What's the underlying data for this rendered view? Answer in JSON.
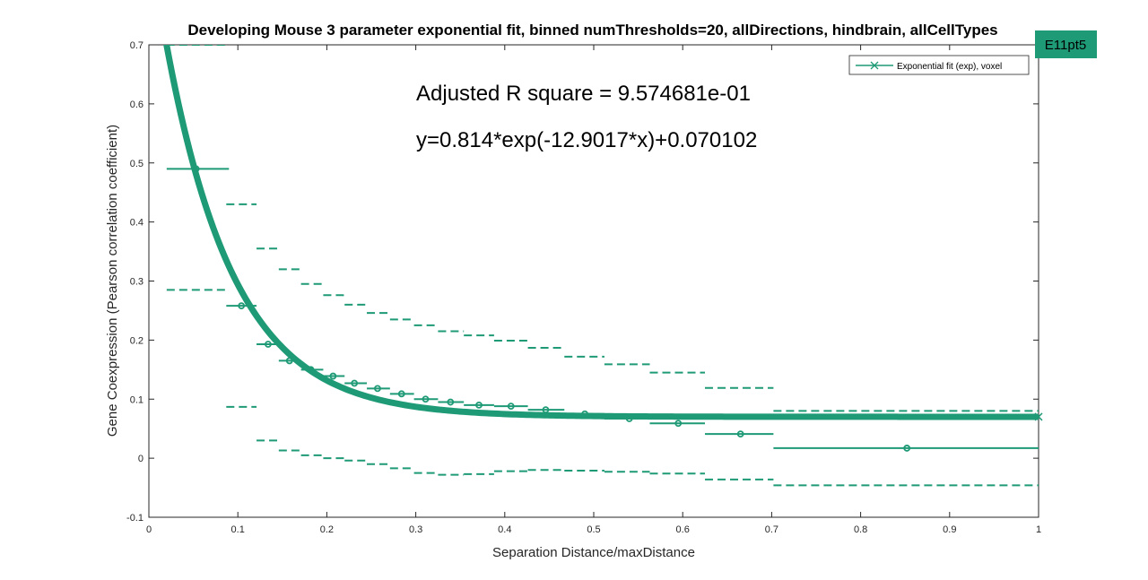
{
  "chart_data": {
    "type": "scatter",
    "title": "Developing Mouse 3 parameter exponential fit, binned numThresholds=20, allDirections, hindbrain, allCellTypes",
    "xlabel": "Separation Distance/maxDistance",
    "ylabel": "Gene Coexpression (Pearson correlation coefficient)",
    "xlim": [
      0,
      1
    ],
    "ylim": [
      -0.1,
      0.7
    ],
    "xticks": [
      "0",
      "0.1",
      "0.2",
      "0.3",
      "0.4",
      "0.5",
      "0.6",
      "0.7",
      "0.8",
      "0.9",
      "1"
    ],
    "yticks": [
      "-0.1",
      "0",
      "0.1",
      "0.2",
      "0.3",
      "0.4",
      "0.5",
      "0.6",
      "0.7"
    ],
    "grid": false,
    "legend_position": "top-right",
    "badge": "E11pt5",
    "annotations": {
      "r_square": "Adjusted R square = 9.574681e-01",
      "equation": "y=0.814*exp(-12.9017*x)+0.070102"
    },
    "fit": {
      "a": 0.814,
      "b": -12.9017,
      "c": 0.070102,
      "x_start": 0.02,
      "x_end": 1.0
    },
    "series": [
      {
        "name": "Exponential fit (exp), voxel",
        "color": "#1f9a76",
        "bins": [
          {
            "x": 0.053,
            "y": 0.49,
            "xmin": 0.02,
            "xmax": 0.09,
            "upper": 0.7,
            "lower": 0.285
          },
          {
            "x": 0.104,
            "y": 0.258,
            "xmin": 0.087,
            "xmax": 0.121,
            "upper": 0.43,
            "lower": 0.087
          },
          {
            "x": 0.134,
            "y": 0.193,
            "xmin": 0.121,
            "xmax": 0.146,
            "upper": 0.355,
            "lower": 0.03
          },
          {
            "x": 0.158,
            "y": 0.165,
            "xmin": 0.146,
            "xmax": 0.171,
            "upper": 0.32,
            "lower": 0.013
          },
          {
            "x": 0.182,
            "y": 0.15,
            "xmin": 0.171,
            "xmax": 0.196,
            "upper": 0.295,
            "lower": 0.005
          },
          {
            "x": 0.207,
            "y": 0.139,
            "xmin": 0.196,
            "xmax": 0.22,
            "upper": 0.276,
            "lower": 0.0
          },
          {
            "x": 0.231,
            "y": 0.127,
            "xmin": 0.22,
            "xmax": 0.245,
            "upper": 0.26,
            "lower": -0.004
          },
          {
            "x": 0.257,
            "y": 0.118,
            "xmin": 0.245,
            "xmax": 0.271,
            "upper": 0.246,
            "lower": -0.01
          },
          {
            "x": 0.284,
            "y": 0.109,
            "xmin": 0.271,
            "xmax": 0.298,
            "upper": 0.235,
            "lower": -0.017
          },
          {
            "x": 0.311,
            "y": 0.1,
            "xmin": 0.298,
            "xmax": 0.325,
            "upper": 0.225,
            "lower": -0.025
          },
          {
            "x": 0.339,
            "y": 0.095,
            "xmin": 0.325,
            "xmax": 0.354,
            "upper": 0.215,
            "lower": -0.028
          },
          {
            "x": 0.371,
            "y": 0.09,
            "xmin": 0.354,
            "xmax": 0.388,
            "upper": 0.208,
            "lower": -0.027
          },
          {
            "x": 0.407,
            "y": 0.088,
            "xmin": 0.388,
            "xmax": 0.426,
            "upper": 0.199,
            "lower": -0.022
          },
          {
            "x": 0.446,
            "y": 0.082,
            "xmin": 0.426,
            "xmax": 0.467,
            "upper": 0.187,
            "lower": -0.02
          },
          {
            "x": 0.49,
            "y": 0.075,
            "xmin": 0.467,
            "xmax": 0.512,
            "upper": 0.172,
            "lower": -0.021
          },
          {
            "x": 0.54,
            "y": 0.067,
            "xmin": 0.512,
            "xmax": 0.563,
            "upper": 0.159,
            "lower": -0.023
          },
          {
            "x": 0.595,
            "y": 0.059,
            "xmin": 0.563,
            "xmax": 0.625,
            "upper": 0.145,
            "lower": -0.026
          },
          {
            "x": 0.665,
            "y": 0.041,
            "xmin": 0.625,
            "xmax": 0.702,
            "upper": 0.119,
            "lower": -0.036
          },
          {
            "x": 0.852,
            "y": 0.017,
            "xmin": 0.702,
            "xmax": 1.0,
            "upper": 0.08,
            "lower": -0.046
          }
        ]
      }
    ]
  }
}
